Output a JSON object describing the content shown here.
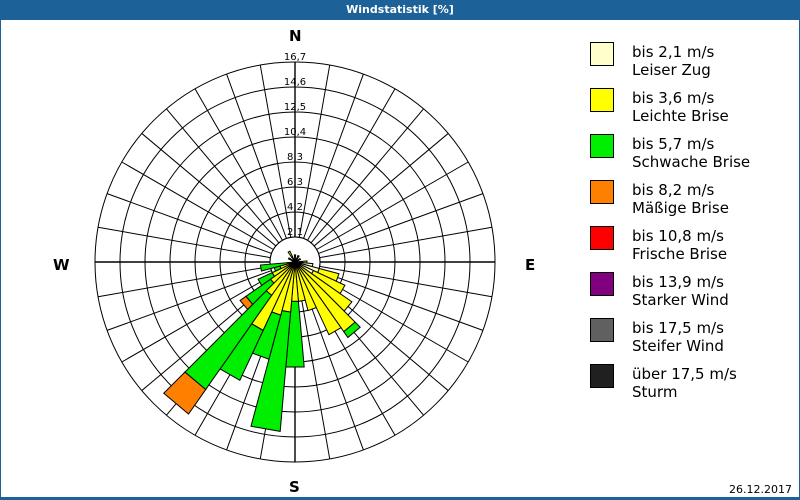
{
  "header": {
    "title": "Windstatistik [%]"
  },
  "compass": {
    "n": "N",
    "e": "E",
    "s": "S",
    "w": "W"
  },
  "footer": {
    "date": "26.12.2017"
  },
  "legend": [
    {
      "range": "bis 2,1 m/s",
      "name": "Leiser Zug",
      "color": "#ffffcc"
    },
    {
      "range": "bis 3,6 m/s",
      "name": "Leichte Brise",
      "color": "#ffff00"
    },
    {
      "range": "bis 5,7 m/s",
      "name": "Schwache Brise",
      "color": "#00ee00"
    },
    {
      "range": "bis 8,2 m/s",
      "name": "Mäßige Brise",
      "color": "#ff8000"
    },
    {
      "range": "bis 10,8 m/s",
      "name": "Frische Brise",
      "color": "#ff0000"
    },
    {
      "range": "bis 13,9 m/s",
      "name": "Starker Wind",
      "color": "#800080"
    },
    {
      "range": "bis 17,5 m/s",
      "name": "Steifer Wind",
      "color": "#606060"
    },
    {
      "range": "über 17,5 m/s",
      "name": "Sturm",
      "color": "#202020"
    }
  ],
  "chart_data": {
    "type": "wind-rose",
    "title": "Windstatistik [%]",
    "radial_ticks": [
      "2,1",
      "4,2",
      "6,3",
      "8,3",
      "10,4",
      "12,5",
      "14,6",
      "16,7"
    ],
    "radial_max": 16.7,
    "sector_width_deg": 10,
    "series_names": [
      "bis 2,1 m/s",
      "bis 3,6 m/s",
      "bis 5,7 m/s",
      "bis 8,2 m/s"
    ],
    "sectors": [
      {
        "dir": 0,
        "values": [
          0.3,
          0.3,
          0,
          0
        ]
      },
      {
        "dir": 30,
        "values": [
          0.3,
          0.3,
          0,
          0
        ]
      },
      {
        "dir": 60,
        "values": [
          0.3,
          0.2,
          0,
          0
        ]
      },
      {
        "dir": 90,
        "values": [
          0.6,
          0.4,
          0,
          0
        ]
      },
      {
        "dir": 100,
        "values": [
          1.5,
          0,
          0,
          0
        ]
      },
      {
        "dir": 110,
        "values": [
          2.1,
          1.7,
          0,
          0
        ]
      },
      {
        "dir": 120,
        "values": [
          1.7,
          2.9,
          0,
          0
        ]
      },
      {
        "dir": 130,
        "values": [
          0.5,
          5.3,
          0,
          0
        ]
      },
      {
        "dir": 140,
        "values": [
          0.5,
          6.6,
          0.6,
          0
        ]
      },
      {
        "dir": 150,
        "values": [
          0.5,
          6.2,
          0,
          0
        ]
      },
      {
        "dir": 160,
        "values": [
          0.5,
          3.7,
          0,
          0
        ]
      },
      {
        "dir": 170,
        "values": [
          0.4,
          2.9,
          0,
          0
        ]
      },
      {
        "dir": 180,
        "values": [
          0.4,
          2.9,
          5.5,
          0
        ]
      },
      {
        "dir": 190,
        "values": [
          0.4,
          3.8,
          10.0,
          0
        ]
      },
      {
        "dir": 200,
        "values": [
          0.4,
          4.2,
          3.8,
          0
        ]
      },
      {
        "dir": 210,
        "values": [
          0.4,
          5.9,
          4.6,
          0
        ]
      },
      {
        "dir": 220,
        "values": [
          0.4,
          3.0,
          9.6,
          2.5
        ]
      },
      {
        "dir": 230,
        "values": [
          0.3,
          2.2,
          2.5,
          0.6
        ]
      },
      {
        "dir": 240,
        "values": [
          0.3,
          1.8,
          1.3,
          0
        ]
      },
      {
        "dir": 250,
        "values": [
          0.3,
          1.0,
          0.5,
          0
        ]
      },
      {
        "dir": 260,
        "values": [
          0.3,
          0.3,
          2.3,
          0
        ]
      },
      {
        "dir": 300,
        "values": [
          0.3,
          0.3,
          0,
          0
        ]
      },
      {
        "dir": 330,
        "values": [
          0.5,
          0.5,
          0,
          0
        ]
      }
    ],
    "legend_position": "right"
  }
}
